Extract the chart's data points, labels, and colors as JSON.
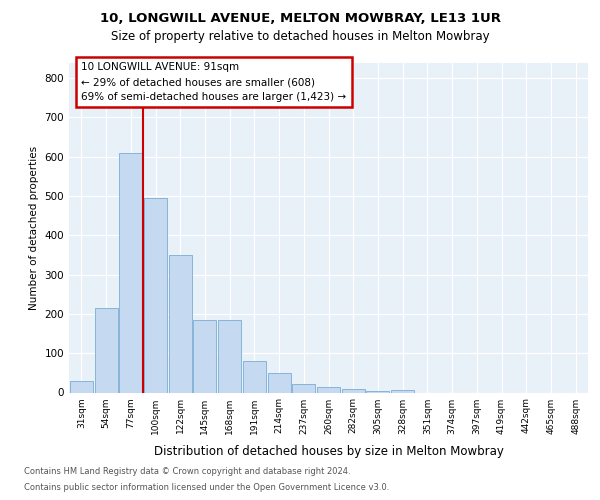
{
  "title_line1": "10, LONGWILL AVENUE, MELTON MOWBRAY, LE13 1UR",
  "title_line2": "Size of property relative to detached houses in Melton Mowbray",
  "xlabel": "Distribution of detached houses by size in Melton Mowbray",
  "ylabel": "Number of detached properties",
  "bins": [
    "31sqm",
    "54sqm",
    "77sqm",
    "100sqm",
    "122sqm",
    "145sqm",
    "168sqm",
    "191sqm",
    "214sqm",
    "237sqm",
    "260sqm",
    "282sqm",
    "305sqm",
    "328sqm",
    "351sqm",
    "374sqm",
    "397sqm",
    "419sqm",
    "442sqm",
    "465sqm",
    "488sqm"
  ],
  "values": [
    30,
    215,
    610,
    495,
    350,
    185,
    185,
    80,
    50,
    22,
    15,
    10,
    5,
    7,
    0,
    0,
    0,
    0,
    0,
    0,
    0
  ],
  "bar_color": "#c5d9f0",
  "bar_edge_color": "#7aadd4",
  "vline_color": "#cc0000",
  "annotation_text": "10 LONGWILL AVENUE: 91sqm\n← 29% of detached houses are smaller (608)\n69% of semi-detached houses are larger (1,423) →",
  "annotation_box_color": "white",
  "annotation_box_edge": "#cc0000",
  "ylim": [
    0,
    840
  ],
  "yticks": [
    0,
    100,
    200,
    300,
    400,
    500,
    600,
    700,
    800
  ],
  "footer1": "Contains HM Land Registry data © Crown copyright and database right 2024.",
  "footer2": "Contains public sector information licensed under the Open Government Licence v3.0.",
  "bg_color": "#e8f0f8"
}
